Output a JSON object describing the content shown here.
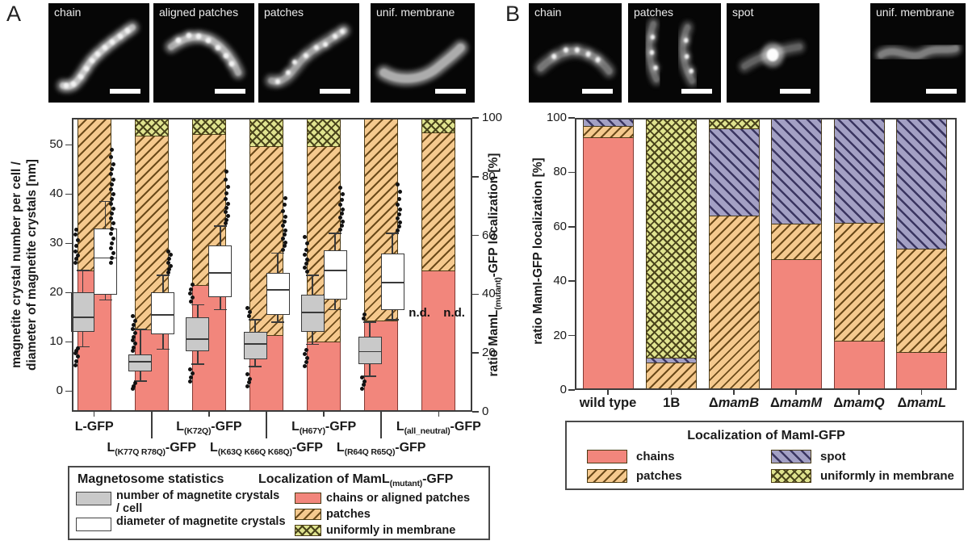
{
  "panel_a": {
    "letter": "A",
    "images": [
      {
        "label": "chain",
        "type": "chain"
      },
      {
        "label": "aligned patches",
        "type": "aligned-patches"
      },
      {
        "label": "patches",
        "type": "patches"
      },
      {
        "label": "unif. membrane",
        "type": "membrane"
      }
    ],
    "legend": {
      "left_title": "Magnetosome statistics",
      "items_left": [
        {
          "swatch": "gray",
          "label_lines": [
            "number of magnetite crystals",
            "/ cell"
          ]
        },
        {
          "swatch": "white",
          "label_lines": [
            "diameter of magnetite crystals"
          ]
        }
      ],
      "right_title": {
        "pre": "Localization of MamL",
        "sub": "(mutant)",
        "post": "-GFP"
      },
      "items_right": [
        {
          "swatch": "chains",
          "label": "chains or aligned patches"
        },
        {
          "swatch": "patches",
          "label": "patches"
        },
        {
          "swatch": "membrane",
          "label": "uniformly in membrane"
        }
      ]
    }
  },
  "panel_b": {
    "letter": "B",
    "images": [
      {
        "label": "chain",
        "type": "chain-b"
      },
      {
        "label": "patches",
        "type": "patches-b"
      },
      {
        "label": "spot",
        "type": "spot"
      },
      {
        "label": "unif. membrane",
        "type": "membrane-b"
      }
    ],
    "legend": {
      "title": "Localization of MamI-GFP",
      "items_col1": [
        {
          "swatch": "chains",
          "label": "chains"
        },
        {
          "swatch": "patches",
          "label": "patches"
        }
      ],
      "items_col2": [
        {
          "swatch": "spot",
          "label": "spot"
        },
        {
          "swatch": "membrane",
          "label": "uniformly in membrane"
        }
      ]
    }
  },
  "chart_data": [
    {
      "id": "A",
      "type": "bar",
      "subtype": "stacked-bar-with-boxplots",
      "left_axis": {
        "label_lines": [
          "magnetite crystal number per cell /",
          "diameter of magnetite crystals [nm]"
        ],
        "ticks": [
          0,
          10,
          20,
          30,
          40,
          50
        ]
      },
      "right_axis": {
        "label": {
          "pre": "ratio MamL",
          "sub": "(mutant)",
          "post": "-GFP localization [%]"
        },
        "ticks": [
          0,
          20,
          40,
          60,
          80,
          100
        ],
        "range": [
          0,
          100
        ]
      },
      "categories": [
        {
          "pre": "L",
          "sub": "",
          "post": "-GFP",
          "row": 1
        },
        {
          "pre": "L",
          "sub": "(K77Q R78Q)",
          "post": "-GFP",
          "row": 2
        },
        {
          "pre": "L",
          "sub": "(K72Q)",
          "post": "-GFP",
          "row": 1
        },
        {
          "pre": "L",
          "sub": "(K63Q K66Q K68Q)",
          "post": "-GFP",
          "row": 2
        },
        {
          "pre": "L",
          "sub": "(H67Y)",
          "post": "-GFP",
          "row": 1
        },
        {
          "pre": "L",
          "sub": "(R64Q R65Q)",
          "post": "-GFP",
          "row": 2
        },
        {
          "pre": "L",
          "sub": "(all_neutral)",
          "post": "-GFP",
          "row": 1
        }
      ],
      "series": [
        {
          "name": "chains or aligned patches",
          "key": "chains",
          "values": [
            48,
            28,
            43,
            26,
            24,
            31,
            48
          ]
        },
        {
          "name": "patches",
          "key": "patches",
          "values": [
            52,
            66,
            51.5,
            64.5,
            66.5,
            69,
            47
          ]
        },
        {
          "name": "uniformly in membrane",
          "key": "membrane",
          "values": [
            0,
            6,
            5.5,
            9.5,
            9.5,
            0,
            5
          ]
        }
      ],
      "boxplots": {
        "number_of_magnetite_crystals_per_cell": [
          {
            "lo": 9,
            "q1": 12,
            "med": 15,
            "q3": 20,
            "hi": 24.5,
            "dots": [
              5.2,
              6.1,
              7,
              7.6,
              8.2,
              8.7,
              26,
              26.8,
              27.5,
              28.4,
              29.5,
              30.6,
              31.8,
              32.7
            ]
          },
          {
            "lo": 2,
            "q1": 4,
            "med": 6,
            "q3": 7.5,
            "hi": 12.5,
            "dots": [
              0.4,
              1,
              1.6,
              8.2,
              8.9,
              9.6,
              10.3,
              11,
              11.8,
              12.6,
              13.4,
              14.3,
              15.2
            ]
          },
          {
            "lo": 5.5,
            "q1": 8,
            "med": 10.5,
            "q3": 15,
            "hi": 17.5,
            "dots": [
              2,
              2.7,
              3.5,
              4.4,
              18.2,
              19,
              19.8,
              20.7,
              21.6
            ]
          },
          {
            "lo": 5,
            "q1": 6.5,
            "med": 9.5,
            "q3": 12,
            "hi": 14.5,
            "dots": [
              1,
              1.7,
              2.5,
              3.4,
              15.2,
              16,
              16.9
            ]
          },
          {
            "lo": 9.5,
            "q1": 12,
            "med": 16,
            "q3": 19.5,
            "hi": 23.5,
            "dots": [
              5,
              5.8,
              6.7,
              7.5,
              8.4,
              24.2,
              25,
              25.8,
              26.7,
              27.6,
              28.6,
              30,
              31.2
            ]
          },
          {
            "lo": 3,
            "q1": 5.5,
            "med": 8,
            "q3": 11,
            "hi": 14,
            "dots": [
              0.5,
              1.2,
              2,
              2.8,
              14.8,
              15.6
            ]
          }
        ],
        "diameter_of_magnetite_crystals_nm": [
          {
            "lo": 18.5,
            "q1": 19.5,
            "med": 27,
            "q3": 33,
            "hi": 38.5,
            "dots": [
              26,
              27,
              28,
              29,
              30,
              31,
              32,
              33,
              34,
              35,
              36,
              37,
              38,
              39,
              40,
              41,
              42,
              43,
              44,
              45,
              46,
              47.5,
              49
            ]
          },
          {
            "lo": 8.5,
            "q1": 11.5,
            "med": 15.5,
            "q3": 20,
            "hi": 23.5,
            "dots": [
              24,
              24.7,
              25.4,
              26.1,
              26.8,
              27.6,
              28.4
            ]
          },
          {
            "lo": 16.5,
            "q1": 19,
            "med": 24,
            "q3": 29.5,
            "hi": 33.5,
            "dots": [
              34,
              34.8,
              35.6,
              36.4,
              37.2,
              38,
              39,
              40.2,
              41.5,
              43,
              44.5
            ]
          },
          {
            "lo": 14,
            "q1": 15.5,
            "med": 20.5,
            "q3": 24,
            "hi": 28,
            "dots": [
              28.6,
              29.4,
              30.2,
              31,
              31.8,
              32.6,
              33.5,
              34.4,
              35.4,
              36.5,
              37.8,
              39.2
            ]
          },
          {
            "lo": 16.5,
            "q1": 18.5,
            "med": 24.5,
            "q3": 28.5,
            "hi": 32,
            "dots": [
              32.8,
              33.6,
              34.4,
              35.2,
              36,
              36.9,
              37.8,
              38.8,
              40,
              41.3
            ]
          },
          {
            "lo": 14.5,
            "q1": 16.5,
            "med": 22,
            "q3": 28,
            "hi": 32,
            "dots": [
              32.6,
              33.4,
              34.2,
              35,
              35.9,
              36.8,
              37.8,
              39,
              40.4,
              42
            ]
          }
        ]
      },
      "not_determined": {
        "category_index": 6,
        "labels": [
          "n.d.",
          "n.d."
        ]
      }
    },
    {
      "id": "B",
      "type": "bar",
      "subtype": "stacked-bar",
      "y_axis": {
        "label": "ratio MamI-GFP localization [%]",
        "ticks": [
          0,
          20,
          40,
          60,
          80,
          100
        ],
        "range": [
          0,
          100
        ]
      },
      "categories": [
        {
          "text": "wild type"
        },
        {
          "text": "1B"
        },
        {
          "prefix": "Δ",
          "italic": "mamB"
        },
        {
          "prefix": "Δ",
          "italic": "mamM"
        },
        {
          "prefix": "Δ",
          "italic": "mamQ"
        },
        {
          "prefix": "Δ",
          "italic": "mamL"
        }
      ],
      "series": [
        {
          "name": "chains",
          "key": "chains",
          "values": [
            93,
            0,
            0,
            48,
            18,
            14
          ]
        },
        {
          "name": "patches",
          "key": "patches",
          "values": [
            4,
            10,
            64,
            13,
            43.5,
            38
          ]
        },
        {
          "name": "spot",
          "key": "spot",
          "values": [
            3,
            2,
            32,
            39,
            38.5,
            48
          ]
        },
        {
          "name": "uniformly in membrane",
          "key": "membrane",
          "values": [
            0,
            88,
            4,
            0,
            0,
            0
          ]
        }
      ]
    }
  ],
  "colors": {
    "chains": "#f2867c",
    "patches_fill": "#f5c98e",
    "patches_line": "#6b4a1a",
    "spot_fill": "#a3a0c4",
    "spot_line": "#3a3560",
    "membrane_fill": "#dfe38f",
    "membrane_line": "#4a441c",
    "box_gray": "#c9c9c9"
  }
}
